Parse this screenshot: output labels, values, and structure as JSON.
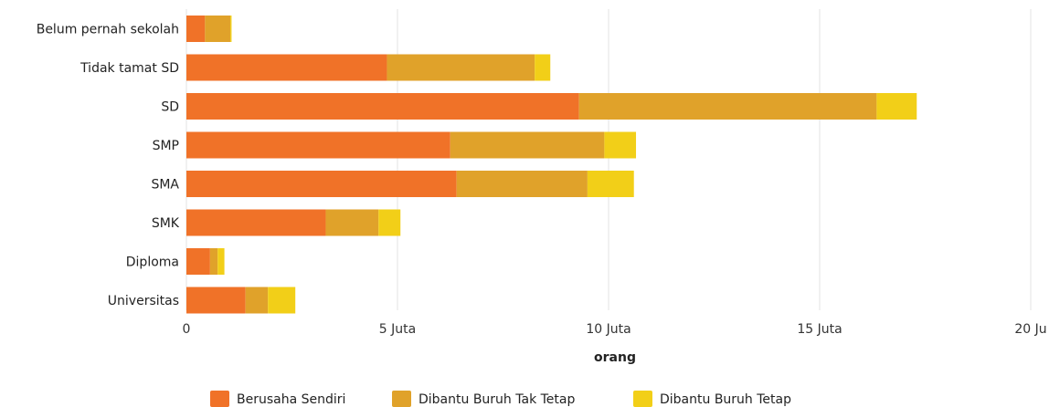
{
  "chart_data": {
    "type": "bar",
    "orientation": "horizontal",
    "stacked": true,
    "title": "",
    "xlabel": "orang",
    "ylabel": "",
    "xlim": [
      0,
      20000000
    ],
    "x_ticks": [
      0,
      5000000,
      10000000,
      15000000,
      20000000
    ],
    "x_tick_labels": [
      "0",
      "5 Juta",
      "10 Juta",
      "15 Juta",
      "20 Ju"
    ],
    "grid": true,
    "legend_position": "bottom",
    "categories": [
      "Belum pernah sekolah",
      "Tidak tamat SD",
      "SD",
      "SMP",
      "SMA",
      "SMK",
      "Diploma",
      "Universitas"
    ],
    "series": [
      {
        "name": "Berusaha Sendiri",
        "color": "#f07228",
        "values": [
          440000,
          4750000,
          9300000,
          6250000,
          6400000,
          3300000,
          560000,
          1400000
        ]
      },
      {
        "name": "Dibantu Buruh Tak Tetap",
        "color": "#e0a22a",
        "values": [
          600000,
          3500000,
          7050000,
          3650000,
          3100000,
          1250000,
          180000,
          530000
        ]
      },
      {
        "name": "Dibantu Buruh Tetap",
        "color": "#f2cf18",
        "values": [
          30000,
          370000,
          950000,
          750000,
          1100000,
          520000,
          160000,
          650000
        ]
      }
    ]
  }
}
